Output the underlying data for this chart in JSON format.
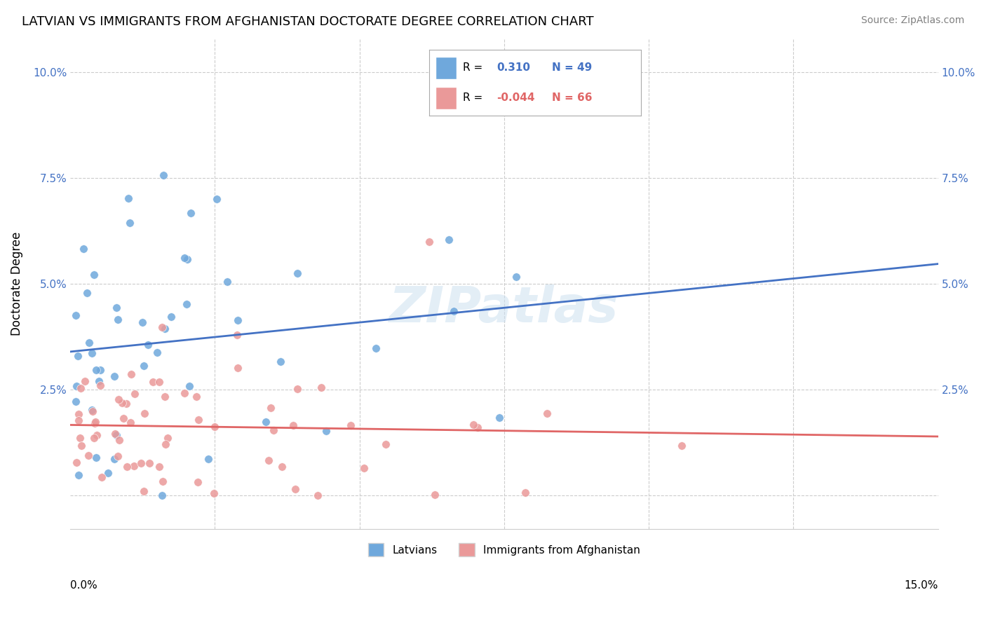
{
  "title": "LATVIAN VS IMMIGRANTS FROM AFGHANISTAN DOCTORATE DEGREE CORRELATION CHART",
  "source": "Source: ZipAtlas.com",
  "ylabel": "Doctorate Degree",
  "yticks": [
    0.0,
    0.025,
    0.05,
    0.075,
    0.1
  ],
  "ytick_labels": [
    "",
    "2.5%",
    "5.0%",
    "7.5%",
    "10.0%"
  ],
  "xlim": [
    0.0,
    0.15
  ],
  "ylim": [
    -0.008,
    0.108
  ],
  "watermark": "ZIPatlas",
  "blue_r": 0.31,
  "blue_n": 49,
  "pink_r": -0.044,
  "pink_n": 66,
  "blue_color": "#6fa8dc",
  "pink_color": "#ea9999",
  "blue_line_color": "#4472c4",
  "pink_line_color": "#e06666",
  "background_color": "#ffffff",
  "grid_color": "#cccccc"
}
